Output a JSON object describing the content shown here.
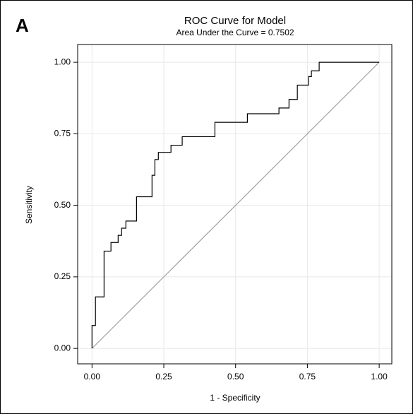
{
  "chart_data": {
    "type": "line",
    "panel_label": "A",
    "title": "ROC Curve for Model",
    "subtitle": "Area Under the Curve = 0.7502",
    "xlabel": "1 - Specificity",
    "ylabel": "Sensitivity",
    "xlim": [
      -0.05,
      1.044
    ],
    "ylim": [
      -0.054,
      1.062
    ],
    "xticks": [
      {
        "value": 0,
        "label": "0.00"
      },
      {
        "value": 0.25,
        "label": "0.25"
      },
      {
        "value": 0.5,
        "label": "0.50"
      },
      {
        "value": 0.75,
        "label": "0.75"
      },
      {
        "value": 1,
        "label": "1.00"
      }
    ],
    "yticks": [
      {
        "value": 0,
        "label": "0.00"
      },
      {
        "value": 0.25,
        "label": "0.25"
      },
      {
        "value": 0.5,
        "label": "0.50"
      },
      {
        "value": 0.75,
        "label": "0.75"
      },
      {
        "value": 1,
        "label": "1.00"
      }
    ],
    "grid": true,
    "series": [
      {
        "color": "#000000",
        "x": [
          0,
          0,
          0.012,
          0.012,
          0.042,
          0.042,
          0.066,
          0.066,
          0.091,
          0.091,
          0.103,
          0.103,
          0.118,
          0.118,
          0.155,
          0.155,
          0.209,
          0.209,
          0.219,
          0.219,
          0.231,
          0.231,
          0.275,
          0.275,
          0.314,
          0.314,
          0.428,
          0.428,
          0.541,
          0.541,
          0.651,
          0.651,
          0.686,
          0.686,
          0.715,
          0.715,
          0.754,
          0.754,
          0.764,
          0.764,
          0.791,
          0.791,
          1
        ],
        "values": [
          0,
          0.08,
          0.08,
          0.18,
          0.18,
          0.34,
          0.34,
          0.37,
          0.37,
          0.395,
          0.395,
          0.42,
          0.42,
          0.445,
          0.445,
          0.53,
          0.53,
          0.605,
          0.605,
          0.66,
          0.66,
          0.685,
          0.685,
          0.71,
          0.71,
          0.74,
          0.74,
          0.79,
          0.79,
          0.82,
          0.82,
          0.84,
          0.84,
          0.87,
          0.87,
          0.92,
          0.92,
          0.95,
          0.95,
          0.97,
          0.97,
          1,
          1
        ]
      },
      {
        "color": "#a0a0a0",
        "x": [
          0,
          1
        ],
        "values": [
          0,
          1
        ]
      }
    ]
  }
}
